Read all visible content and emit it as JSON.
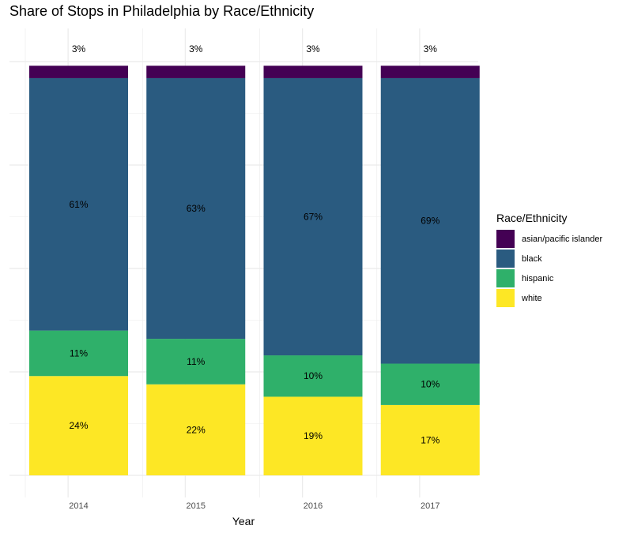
{
  "colors": {
    "asian/pacific islander": "#440154",
    "black": "#2a5b80",
    "hispanic": "#2fb06a",
    "white": "#fde725",
    "grid": "#ebebeb",
    "text": "#000000",
    "axis_text": "#4d4d4d"
  },
  "chart_data": {
    "type": "bar",
    "stacked": true,
    "title": "Share of Stops in Philadelphia by Race/Ethnicity",
    "xlabel": "Year",
    "ylabel": "",
    "ylim": [
      0,
      1
    ],
    "y_axis_labels_shown": false,
    "grid": true,
    "legend_position": "right",
    "legend_title": "Race/Ethnicity",
    "categories": [
      "2014",
      "2015",
      "2016",
      "2017"
    ],
    "series": [
      {
        "name": "white",
        "values": [
          0.24,
          0.22,
          0.19,
          0.17
        ],
        "labels": [
          "24%",
          "22%",
          "19%",
          "17%"
        ]
      },
      {
        "name": "hispanic",
        "values": [
          0.11,
          0.11,
          0.1,
          0.1
        ],
        "labels": [
          "11%",
          "11%",
          "10%",
          "10%"
        ]
      },
      {
        "name": "black",
        "values": [
          0.61,
          0.63,
          0.67,
          0.69
        ],
        "labels": [
          "61%",
          "63%",
          "67%",
          "69%"
        ]
      },
      {
        "name": "asian/pacific islander",
        "values": [
          0.03,
          0.03,
          0.03,
          0.03
        ],
        "labels": [
          "3%",
          "3%",
          "3%",
          "3%"
        ]
      }
    ],
    "legend_order": [
      "asian/pacific islander",
      "black",
      "hispanic",
      "white"
    ]
  }
}
